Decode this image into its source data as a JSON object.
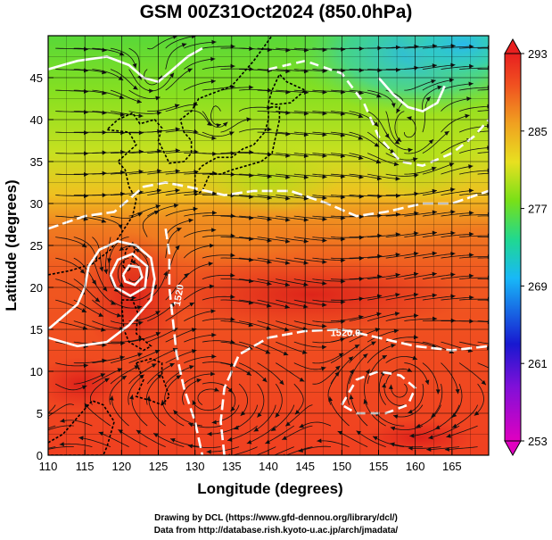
{
  "chart_data": {
    "type": "heatmap",
    "title": "GSM 00Z31Oct2024 (850.0hPa)",
    "xlabel": "Longitude (degrees)",
    "ylabel": "Latitude  (degrees)",
    "xlim": [
      110,
      170
    ],
    "ylim": [
      0,
      50
    ],
    "x_ticks": [
      "110",
      "115",
      "120",
      "125",
      "130",
      "135",
      "140",
      "145",
      "150",
      "155",
      "160",
      "165"
    ],
    "y_ticks": [
      "0",
      "5",
      "10",
      "15",
      "20",
      "25",
      "30",
      "35",
      "40",
      "45"
    ],
    "colorbar_ticks": [
      "253",
      "261",
      "269",
      "277",
      "285",
      "293"
    ],
    "colorbar_range": [
      253,
      293
    ],
    "contour_labels": [
      "1520.0",
      "1520"
    ],
    "grid": true,
    "overlays": [
      "streamlines",
      "geopotential height contours (white)",
      "coastlines"
    ],
    "colormap": [
      "#e000c0",
      "#1818d0",
      "#18b8f8",
      "#20d890",
      "#78e018",
      "#e8e020",
      "#f0a020",
      "#f05020",
      "#e82020"
    ]
  },
  "credits": {
    "line1": "Drawing by DCL (https://www.gfd-dennou.org/library/dcl/)",
    "line2": "Data from http://database.rish.kyoto-u.ac.jp/arch/jmadata/"
  }
}
